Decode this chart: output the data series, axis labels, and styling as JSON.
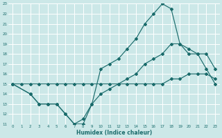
{
  "xlabel": "Humidex (Indice chaleur)",
  "background_color": "#cce8e8",
  "grid_color": "#b0d4d4",
  "line_color": "#1a6b6b",
  "xlim": [
    -0.5,
    23.5
  ],
  "ylim": [
    11,
    23
  ],
  "xticks": [
    0,
    1,
    2,
    3,
    4,
    5,
    6,
    7,
    8,
    9,
    10,
    11,
    12,
    13,
    14,
    15,
    16,
    17,
    18,
    19,
    20,
    21,
    22,
    23
  ],
  "yticks": [
    11,
    12,
    13,
    14,
    15,
    16,
    17,
    18,
    19,
    20,
    21,
    22,
    23
  ],
  "line1_x": [
    0,
    2,
    3,
    4,
    5,
    6,
    7,
    8,
    9,
    10,
    11,
    12,
    13,
    14,
    15,
    16,
    17,
    18,
    19,
    20,
    21,
    22,
    23
  ],
  "line1_y": [
    15,
    14,
    13,
    13,
    13,
    12,
    11,
    11,
    13,
    16.5,
    17,
    17.5,
    18.5,
    19.5,
    21,
    22,
    23,
    22.5,
    19,
    18.5,
    18,
    16.5,
    15
  ],
  "line2_x": [
    0,
    2,
    3,
    4,
    5,
    6,
    7,
    8,
    9,
    10,
    11,
    12,
    13,
    14,
    15,
    16,
    17,
    18,
    19,
    20,
    21,
    22,
    23
  ],
  "line2_y": [
    15,
    14,
    13,
    13,
    13,
    12,
    11,
    11.5,
    13,
    14,
    14.5,
    15,
    15.5,
    16,
    17,
    17.5,
    18,
    19,
    19,
    18,
    18,
    18,
    16.5
  ],
  "line3_x": [
    0,
    1,
    2,
    3,
    4,
    5,
    6,
    7,
    8,
    9,
    10,
    11,
    12,
    13,
    14,
    15,
    16,
    17,
    18,
    19,
    20,
    21,
    22,
    23
  ],
  "line3_y": [
    15,
    15,
    15,
    15,
    15,
    15,
    15,
    15,
    15,
    15,
    15,
    15,
    15,
    15,
    15,
    15,
    15,
    15,
    15.5,
    15.5,
    16,
    16,
    16,
    15.5
  ]
}
